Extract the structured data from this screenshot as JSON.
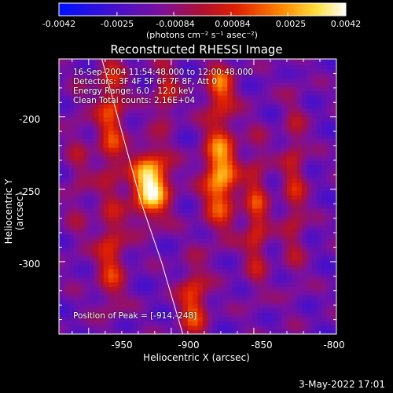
{
  "colorbar": {
    "ticks": [
      "-0.0042",
      "-0.0025",
      "-0.00084",
      "0.00084",
      "0.0025",
      "0.0042"
    ],
    "units": "(photons cm⁻² s⁻¹ asec⁻²)"
  },
  "title": "Reconstructed RHESSI Image",
  "info": {
    "time": "16-Sep-2004 11:54:48.000 to 12:00:48.000",
    "detectors": "Detectors: 3F 4F 5F 6F 7F 8F, Att 0",
    "energy": "Energy Range: 6.0 - 12.0 keV",
    "clean": "Clean     Total counts: 2.16E+04"
  },
  "peak": "Position of Peak = [-914,-248]",
  "footer_date": "3-May-2022 17:01",
  "chart_data": {
    "type": "heatmap",
    "title": "Reconstructed RHESSI Image",
    "xlabel": "Heliocentric X (arcsec)",
    "ylabel": "Heliocentric Y (arcsec)",
    "xlim": [
      -968,
      -800
    ],
    "ylim": [
      -350,
      -160
    ],
    "x_ticks": [
      "-950",
      "-900",
      "-850",
      "-800"
    ],
    "y_ticks": [
      "-200",
      "-250",
      "-300"
    ],
    "color_range": [
      -0.0042,
      0.0042
    ],
    "colormap": "blue-purple-red-yellow-white",
    "peak_position": [
      -914,
      -248
    ],
    "limb_curve": [
      [
        -942,
        -160
      ],
      [
        -930,
        -210
      ],
      [
        -918,
        -260
      ],
      [
        -906,
        -300
      ],
      [
        -893,
        -350
      ]
    ],
    "sources": [
      {
        "x": -914,
        "y": -248,
        "sx": 8,
        "sy": 16,
        "amp": 1.0
      },
      {
        "x": -888,
        "y": -330,
        "sx": 6,
        "sy": 18,
        "amp": 0.55
      },
      {
        "x": -872,
        "y": -240,
        "sx": 7,
        "sy": 26,
        "amp": 0.78
      },
      {
        "x": -872,
        "y": -180,
        "sx": 6,
        "sy": 12,
        "amp": 0.55
      },
      {
        "x": -938,
        "y": -200,
        "sx": 6,
        "sy": 35,
        "amp": 0.5
      },
      {
        "x": -938,
        "y": -300,
        "sx": 6,
        "sy": 25,
        "amp": 0.45
      },
      {
        "x": -905,
        "y": -185,
        "sx": 5,
        "sy": 15,
        "amp": 0.4
      },
      {
        "x": -850,
        "y": -270,
        "sx": 5,
        "sy": 35,
        "amp": 0.45
      },
      {
        "x": -827,
        "y": -250,
        "sx": 5,
        "sy": 45,
        "amp": 0.35
      },
      {
        "x": -958,
        "y": -240,
        "sx": 5,
        "sy": 40,
        "amp": 0.2
      }
    ]
  }
}
